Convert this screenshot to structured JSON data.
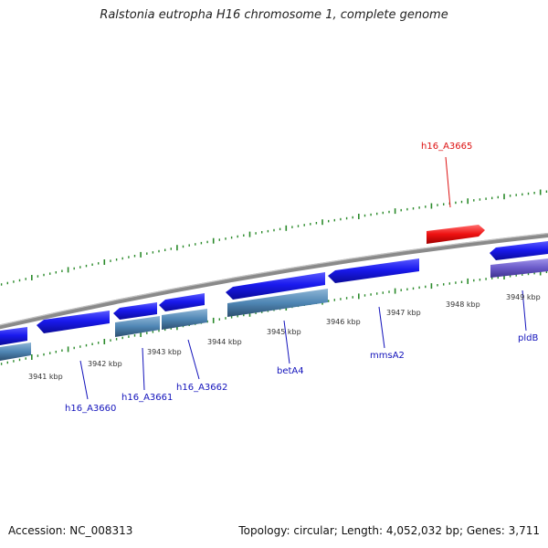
{
  "title": "Ralstonia eutropha H16 chromosome 1, complete genome",
  "footer": {
    "accession": "Accession: NC_008313",
    "summary": "Topology: circular; Length: 4,052,032 bp; Genes: 3,711"
  },
  "colors": {
    "forward_gene": "#1a1aee",
    "reverse_gene": "#4f86b4",
    "highlight_gene": "#ee1111",
    "pseudo_gene": "#6a5ac8",
    "backbone": "#8a8a8a",
    "ticks": "#2a8a2a",
    "label_blue": "#1212bb",
    "label_red": "#dd1111"
  },
  "scale_labels": [
    "3941 kbp",
    "3942 kbp",
    "3943 kbp",
    "3944 kbp",
    "3945 kbp",
    "3946 kbp",
    "3947 kbp",
    "3948 kbp",
    "3949 kbp"
  ],
  "gene_labels": [
    {
      "text": "h16_A3665",
      "color": "red"
    },
    {
      "text": "h16_A3660",
      "color": "blue"
    },
    {
      "text": "h16_A3661",
      "color": "blue"
    },
    {
      "text": "h16_A3662",
      "color": "blue"
    },
    {
      "text": "betA4",
      "color": "blue"
    },
    {
      "text": "mmsA2",
      "color": "blue"
    },
    {
      "text": "pldB",
      "color": "blue"
    }
  ]
}
